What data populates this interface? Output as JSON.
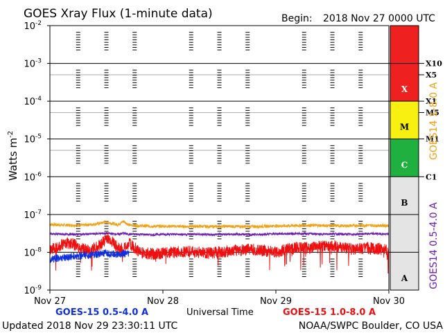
{
  "header": {
    "title": "GOES Xray Flux (1-minute data)",
    "begin_label": "Begin:",
    "begin_value": "2018 Nov 27 0000 UTC"
  },
  "footer": {
    "updated": "Updated 2018 Nov 29 23:30:11 UTC",
    "credit": "NOAA/SWPC Boulder, CO USA"
  },
  "colors": {
    "goes15_short": "#1030e0",
    "goes15_long": "#ee1010",
    "goes14_short": "#6a1eb0",
    "goes14_long": "#f0a010",
    "class_X": "#ee2020",
    "class_M": "#f8f010",
    "class_C": "#20b040",
    "class_AB": "#e4e4e4"
  },
  "chart_data": {
    "type": "line",
    "title": "GOES Xray Flux (1-minute data)",
    "xlabel": "Universal Time",
    "ylabel": "Watts m",
    "ylabel_sup": "-2",
    "y_scale": "log",
    "ylim": [
      1e-09,
      0.01
    ],
    "y_ticks": [
      {
        "base": "10",
        "exp": "-2",
        "value": 0.01
      },
      {
        "base": "10",
        "exp": "-3",
        "value": 0.001
      },
      {
        "base": "10",
        "exp": "-4",
        "value": 0.0001
      },
      {
        "base": "10",
        "exp": "-5",
        "value": 1e-05
      },
      {
        "base": "10",
        "exp": "-6",
        "value": 1e-06
      },
      {
        "base": "10",
        "exp": "-7",
        "value": 1e-07
      },
      {
        "base": "10",
        "exp": "-8",
        "value": 1e-08
      },
      {
        "base": "10",
        "exp": "-9",
        "value": 1e-09
      }
    ],
    "x_days": [
      "Nov 27",
      "Nov 28",
      "Nov 29",
      "Nov 30"
    ],
    "xlim_days": [
      0,
      3
    ],
    "flare_classes": [
      {
        "label": "X",
        "low": 0.0001,
        "high": 0.01,
        "color": "#ee2020"
      },
      {
        "label": "M",
        "low": 1e-05,
        "high": 0.0001,
        "color": "#f8f010"
      },
      {
        "label": "C",
        "low": 1e-06,
        "high": 1e-05,
        "color": "#20b040"
      },
      {
        "label": "B",
        "low": 1e-07,
        "high": 1e-06,
        "color": "#e4e4e4"
      },
      {
        "label": "A",
        "low": 1e-09,
        "high": 1e-07,
        "color": "#e4e4e4"
      }
    ],
    "right_tick_labels": [
      {
        "label": "X10",
        "value": 0.001
      },
      {
        "label": "X5",
        "value": 0.0005
      },
      {
        "label": "X1",
        "value": 0.0001
      },
      {
        "label": "M5",
        "value": 5e-05
      },
      {
        "label": "M1",
        "value": 1e-05
      },
      {
        "label": "C1",
        "value": 1e-06
      }
    ],
    "right_axis_labels": [
      {
        "text": "GOES14 0.5-4.0 A",
        "color": "#6a1eb0"
      },
      {
        "text": "GOES14 1-8.0 A",
        "color": "#f0a010"
      }
    ],
    "legend": [
      {
        "text": "GOES-15 0.5-4.0 A",
        "color": "#1030e0"
      },
      {
        "text": "GOES-15 1.0-8.0 A",
        "color": "#ee1010"
      }
    ],
    "series": [
      {
        "name": "GOES14 1-8.0 A",
        "color": "#f0a010",
        "x_days": [
          0,
          0.1,
          0.2,
          0.3,
          0.4,
          0.5,
          0.55,
          0.6,
          0.65,
          0.7,
          0.8,
          0.9,
          1.0,
          1.1,
          1.2,
          1.3,
          1.4,
          1.5,
          1.6,
          1.7,
          1.8,
          1.9,
          2.0,
          2.1,
          2.2,
          2.3,
          2.4,
          2.5,
          2.6,
          2.7,
          2.8,
          2.9,
          3.0
        ],
        "values": [
          5.5e-08,
          5.3e-08,
          5.2e-08,
          5.2e-08,
          5.6e-08,
          6.3e-08,
          5.8e-08,
          5.4e-08,
          6.6e-08,
          5.3e-08,
          5e-08,
          4.9e-08,
          4.9e-08,
          4.9e-08,
          4.8e-08,
          4.9e-08,
          4.8e-08,
          4.8e-08,
          4.9e-08,
          4.8e-08,
          4.8e-08,
          4.9e-08,
          5e-08,
          5e-08,
          5.1e-08,
          5.2e-08,
          5.1e-08,
          5.1e-08,
          5e-08,
          5.1e-08,
          5.2e-08,
          5.1e-08,
          5.1e-08
        ]
      },
      {
        "name": "GOES14 0.5-4.0 A",
        "color": "#6a1eb0",
        "x_days": [
          0,
          0.1,
          0.2,
          0.3,
          0.4,
          0.5,
          0.55,
          0.6,
          0.65,
          0.7,
          0.8,
          0.9,
          1.0,
          1.1,
          1.2,
          1.3,
          1.4,
          1.5,
          1.6,
          1.7,
          1.8,
          1.9,
          2.0,
          2.1,
          2.2,
          2.3,
          2.4,
          2.5,
          2.6,
          2.7,
          2.8,
          2.9,
          3.0
        ],
        "values": [
          3.1e-08,
          3e-08,
          3e-08,
          3e-08,
          3.1e-08,
          3.2e-08,
          3.1e-08,
          3e-08,
          3.2e-08,
          3e-08,
          3e-08,
          2.9e-08,
          3e-08,
          3e-08,
          3e-08,
          3e-08,
          2.9e-08,
          3e-08,
          3e-08,
          3e-08,
          2.9e-08,
          3e-08,
          3.1e-08,
          3.1e-08,
          3.1e-08,
          3.1e-08,
          3e-08,
          3.1e-08,
          3e-08,
          3e-08,
          3.1e-08,
          3.1e-08,
          3e-08
        ]
      },
      {
        "name": "GOES-15 1.0-8.0 A",
        "color": "#ee1010",
        "x_days": [
          0,
          0.05,
          0.1,
          0.15,
          0.2,
          0.25,
          0.3,
          0.35,
          0.4,
          0.45,
          0.5,
          0.55,
          0.6,
          0.65,
          0.7,
          0.8,
          0.9,
          1.0,
          1.1,
          1.2,
          1.3,
          1.4,
          1.5,
          1.6,
          1.7,
          1.8,
          1.9,
          2.0,
          2.1,
          2.2,
          2.3,
          2.4,
          2.5,
          2.6,
          2.7,
          2.8,
          2.9,
          3.0
        ],
        "values": [
          1.1e-08,
          1.4e-08,
          1.6e-08,
          1.8e-08,
          1.7e-08,
          1.4e-08,
          1.2e-08,
          1.1e-08,
          1.3e-08,
          1.6e-08,
          2.4e-08,
          2e-08,
          1.3e-08,
          1.2e-08,
          1.7e-08,
          1e-08,
          9e-09,
          9.5e-09,
          1e-08,
          1.05e-08,
          1e-08,
          9.5e-09,
          1e-08,
          1.1e-08,
          1.15e-08,
          1.2e-08,
          1.1e-08,
          1e-08,
          1.2e-08,
          1.35e-08,
          1.3e-08,
          1.4e-08,
          1.5e-08,
          1.3e-08,
          1.2e-08,
          1.3e-08,
          1.25e-08,
          1.1e-08
        ]
      },
      {
        "name": "GOES-15 0.5-4.0 A",
        "color": "#1030e0",
        "x_days": [
          0,
          0.1,
          0.2,
          0.3,
          0.4,
          0.5,
          0.55,
          0.6,
          0.65,
          0.7
        ],
        "values": [
          6.5e-09,
          7.2e-09,
          7.8e-09,
          8.2e-09,
          8.8e-09,
          9.3e-09,
          9e-09,
          8.8e-09,
          9.2e-09,
          9e-09
        ]
      }
    ]
  }
}
